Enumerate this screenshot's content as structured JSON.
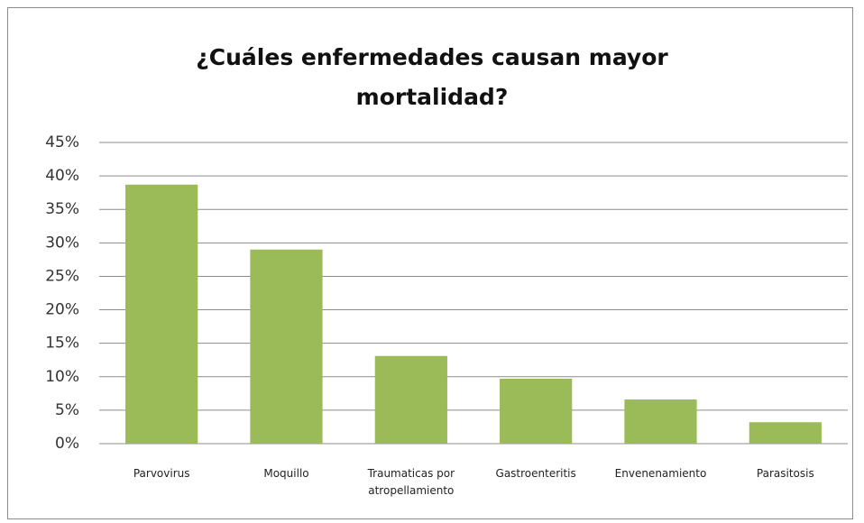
{
  "chart_data": {
    "type": "bar",
    "title": "¿Cuáles enfermedades causan mayor mortalidad?",
    "categories": [
      "Parvovirus",
      "Moquillo",
      "Traumaticas por atropellamiento",
      "Gastroenteritis",
      "Envenenamiento",
      "Parasitosis"
    ],
    "values": [
      38.7,
      29.0,
      13.1,
      9.7,
      6.6,
      3.2
    ],
    "color": "#9bbb59",
    "ylim": [
      0,
      45
    ],
    "yticks": [
      {
        "value": 0,
        "label": "0%"
      },
      {
        "value": 5,
        "label": "5%"
      },
      {
        "value": 10,
        "label": "10%"
      },
      {
        "value": 15,
        "label": "15%"
      },
      {
        "value": 20,
        "label": "20%"
      },
      {
        "value": 25,
        "label": "25%"
      },
      {
        "value": 30,
        "label": "30%"
      },
      {
        "value": 35,
        "label": "35%"
      },
      {
        "value": 40,
        "label": "40%"
      },
      {
        "value": 45,
        "label": "45%"
      }
    ],
    "grid": true
  }
}
